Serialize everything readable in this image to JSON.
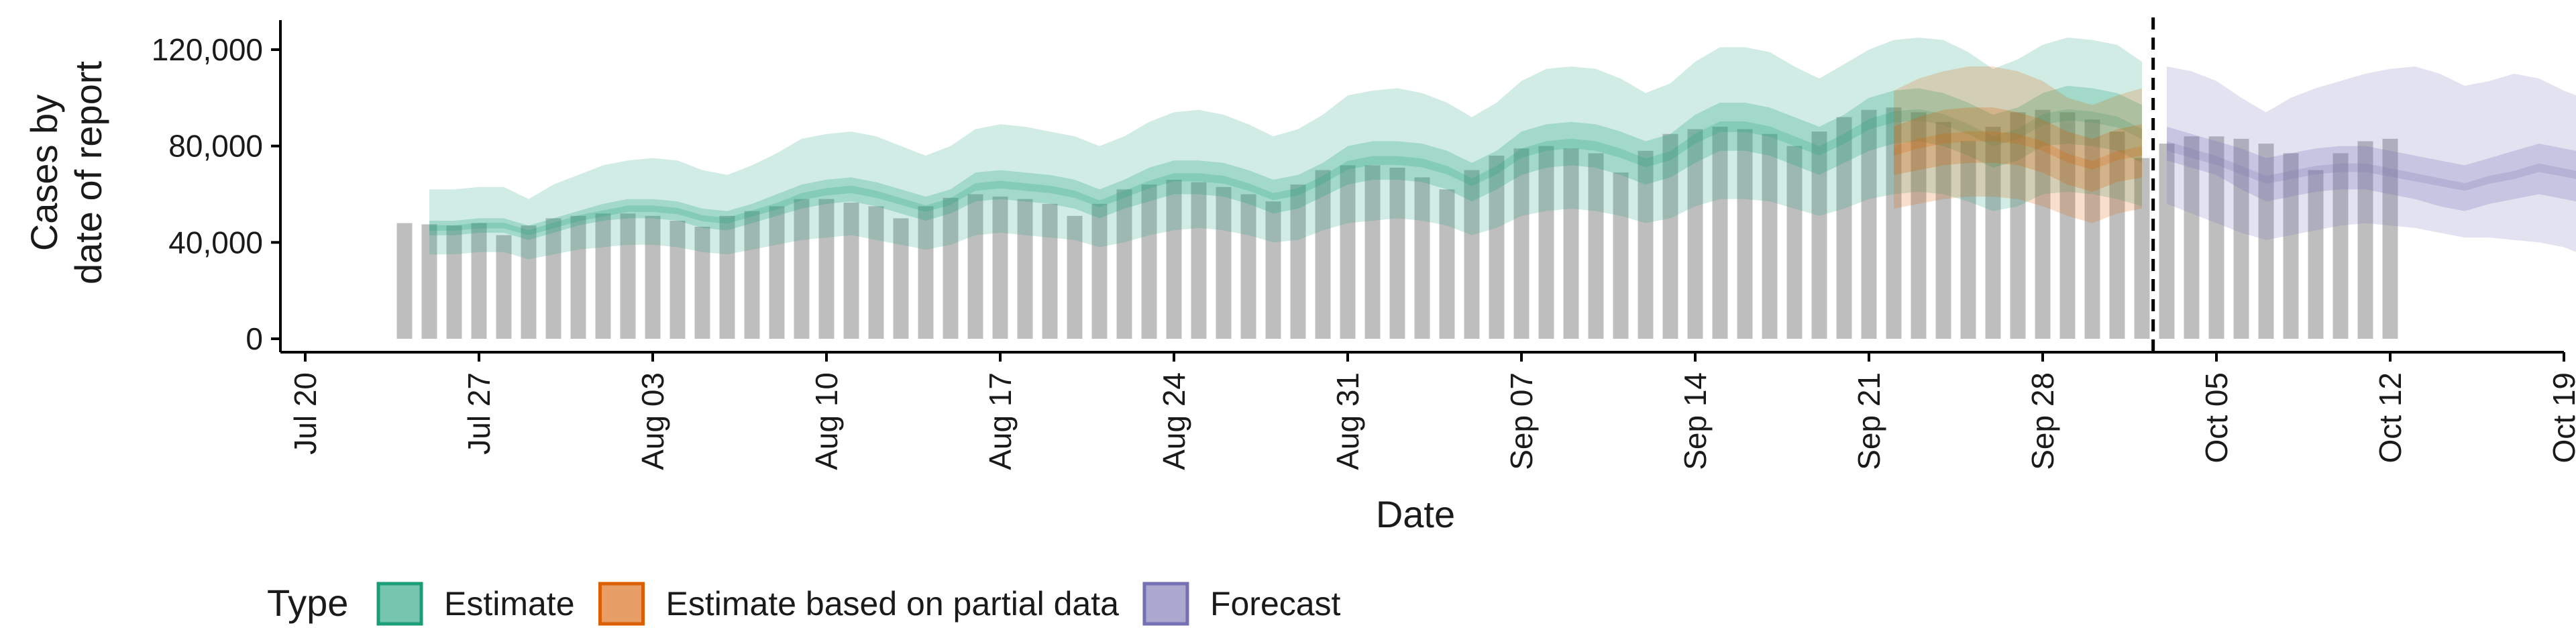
{
  "chart_data": {
    "type": "bar",
    "title": "",
    "xlabel": "Date",
    "ylabel_lines": [
      "Cases by",
      "date of report"
    ],
    "ylim": [
      0,
      130000
    ],
    "yticks": [
      0,
      40000,
      80000,
      120000
    ],
    "ytick_labels": [
      "0",
      "40,000",
      "80,000",
      "120,000"
    ],
    "xlim": [
      "2020-07-19",
      "2020-10-19"
    ],
    "xticks": [
      "2020-07-20",
      "2020-07-27",
      "2020-08-03",
      "2020-08-10",
      "2020-08-17",
      "2020-08-24",
      "2020-08-31",
      "2020-09-07",
      "2020-09-14",
      "2020-09-21",
      "2020-09-28",
      "2020-10-05",
      "2020-10-12",
      "2020-10-19"
    ],
    "xtick_labels": [
      "Jul 20",
      "Jul 27",
      "Aug 03",
      "Aug 10",
      "Aug 17",
      "Aug 24",
      "Aug 31",
      "Sep 07",
      "Sep 14",
      "Sep 21",
      "Sep 28",
      "Oct 05",
      "Oct 12",
      "Oct 19"
    ],
    "grid": false,
    "forecast_date": "2020-10-02",
    "reported_cases": {
      "start": "2020-07-24",
      "values": [
        48000,
        47500,
        47000,
        48000,
        43000,
        47000,
        50000,
        51000,
        52000,
        52000,
        51000,
        49000,
        46500,
        51000,
        53000,
        55000,
        58000,
        58000,
        56500,
        55000,
        50000,
        55000,
        58500,
        60000,
        59000,
        58000,
        56000,
        51000,
        56000,
        62000,
        64000,
        66000,
        65000,
        63000,
        60000,
        57000,
        64000,
        70000,
        72000,
        72000,
        71000,
        67000,
        62000,
        70000,
        76000,
        79000,
        80000,
        79000,
        77000,
        69000,
        78000,
        85000,
        87000,
        88000,
        87000,
        85000,
        80000,
        86000,
        92000,
        95000,
        96000,
        94000,
        90000,
        82000,
        88000,
        94000,
        95000,
        94000,
        91000,
        86000,
        75000,
        81000,
        84000,
        84000,
        83000,
        81000,
        77000,
        70000,
        77000,
        82000,
        83000
      ]
    },
    "series": [
      {
        "name": "Estimate",
        "color": "#1b9e77",
        "start": "2020-07-25",
        "median": [
          46000,
          46000,
          47000,
          47000,
          44000,
          47000,
          50000,
          52000,
          54000,
          54000,
          53000,
          50000,
          49000,
          52000,
          55000,
          59000,
          61000,
          62000,
          60000,
          57000,
          54000,
          57000,
          63000,
          64000,
          63000,
          62000,
          60000,
          56000,
          60000,
          64000,
          67000,
          67000,
          66000,
          63000,
          59000,
          61000,
          66000,
          72000,
          74000,
          74000,
          73000,
          70000,
          65000,
          70000,
          77000,
          80000,
          81000,
          80000,
          77000,
          73000,
          76000,
          83000,
          88000,
          88000,
          86000,
          82000,
          78000,
          83000,
          89000,
          92000,
          93000,
          91000,
          87000,
          82000,
          85000,
          91000,
          93000,
          92000,
          90000,
          85000
        ],
        "ci_50": [
          [
            43000,
            49000
          ],
          [
            43000,
            49000
          ],
          [
            44000,
            50000
          ],
          [
            44000,
            50000
          ],
          [
            41000,
            47000
          ],
          [
            44000,
            50000
          ],
          [
            47000,
            53000
          ],
          [
            49000,
            56000
          ],
          [
            50000,
            58000
          ],
          [
            50000,
            58000
          ],
          [
            49000,
            57000
          ],
          [
            46000,
            54000
          ],
          [
            45000,
            53000
          ],
          [
            48000,
            56000
          ],
          [
            51000,
            60000
          ],
          [
            54000,
            64000
          ],
          [
            56000,
            66000
          ],
          [
            57000,
            67000
          ],
          [
            55000,
            65000
          ],
          [
            52000,
            62000
          ],
          [
            49000,
            59000
          ],
          [
            52000,
            62000
          ],
          [
            57000,
            69000
          ],
          [
            58000,
            70000
          ],
          [
            57000,
            69000
          ],
          [
            56000,
            68000
          ],
          [
            54000,
            66000
          ],
          [
            50000,
            62000
          ],
          [
            54000,
            66000
          ],
          [
            57000,
            71000
          ],
          [
            60000,
            74000
          ],
          [
            60000,
            74000
          ],
          [
            59000,
            73000
          ],
          [
            56000,
            70000
          ],
          [
            52000,
            66000
          ],
          [
            54000,
            68000
          ],
          [
            59000,
            73000
          ],
          [
            64000,
            80000
          ],
          [
            66000,
            82000
          ],
          [
            66000,
            82000
          ],
          [
            65000,
            81000
          ],
          [
            62000,
            78000
          ],
          [
            57000,
            73000
          ],
          [
            62000,
            78000
          ],
          [
            68000,
            86000
          ],
          [
            71000,
            89000
          ],
          [
            72000,
            90000
          ],
          [
            71000,
            89000
          ],
          [
            68000,
            86000
          ],
          [
            64000,
            82000
          ],
          [
            67000,
            85000
          ],
          [
            73000,
            93000
          ],
          [
            78000,
            98000
          ],
          [
            78000,
            98000
          ],
          [
            76000,
            96000
          ],
          [
            72000,
            92000
          ],
          [
            68000,
            88000
          ],
          [
            73000,
            93000
          ],
          [
            78000,
            100000
          ],
          [
            81000,
            103000
          ],
          [
            82000,
            104000
          ],
          [
            80000,
            102000
          ],
          [
            76000,
            98000
          ],
          [
            71000,
            93000
          ],
          [
            74000,
            96000
          ],
          [
            80000,
            102000
          ],
          [
            81000,
            105000
          ],
          [
            80000,
            104000
          ],
          [
            78000,
            102000
          ],
          [
            73000,
            97000
          ]
        ],
        "ci_90": [
          [
            35000,
            62000
          ],
          [
            35000,
            62000
          ],
          [
            36000,
            63000
          ],
          [
            36000,
            63000
          ],
          [
            33000,
            58000
          ],
          [
            35000,
            64000
          ],
          [
            37000,
            68000
          ],
          [
            38000,
            72000
          ],
          [
            39000,
            74000
          ],
          [
            39000,
            75000
          ],
          [
            38000,
            74000
          ],
          [
            36000,
            70000
          ],
          [
            35000,
            68000
          ],
          [
            37000,
            72000
          ],
          [
            39000,
            77000
          ],
          [
            41000,
            83000
          ],
          [
            42000,
            85000
          ],
          [
            43000,
            86000
          ],
          [
            41000,
            84000
          ],
          [
            39000,
            80000
          ],
          [
            37000,
            76000
          ],
          [
            39000,
            80000
          ],
          [
            43000,
            87000
          ],
          [
            44000,
            89000
          ],
          [
            43000,
            88000
          ],
          [
            42000,
            86000
          ],
          [
            41000,
            84000
          ],
          [
            38000,
            80000
          ],
          [
            40000,
            84000
          ],
          [
            43000,
            90000
          ],
          [
            45000,
            94000
          ],
          [
            46000,
            95000
          ],
          [
            45000,
            93000
          ],
          [
            43000,
            89000
          ],
          [
            40000,
            84000
          ],
          [
            41000,
            87000
          ],
          [
            45000,
            93000
          ],
          [
            48000,
            101000
          ],
          [
            49000,
            103000
          ],
          [
            50000,
            104000
          ],
          [
            49000,
            102000
          ],
          [
            47000,
            98000
          ],
          [
            43000,
            92000
          ],
          [
            46000,
            98000
          ],
          [
            51000,
            107000
          ],
          [
            53000,
            112000
          ],
          [
            54000,
            113000
          ],
          [
            53000,
            112000
          ],
          [
            51000,
            108000
          ],
          [
            48000,
            102000
          ],
          [
            50000,
            106000
          ],
          [
            55000,
            115000
          ],
          [
            58000,
            121000
          ],
          [
            58000,
            121000
          ],
          [
            57000,
            119000
          ],
          [
            54000,
            113000
          ],
          [
            51000,
            108000
          ],
          [
            54000,
            114000
          ],
          [
            58000,
            120000
          ],
          [
            60000,
            124000
          ],
          [
            61000,
            125000
          ],
          [
            60000,
            124000
          ],
          [
            57000,
            119000
          ],
          [
            53000,
            112000
          ],
          [
            55000,
            116000
          ],
          [
            60000,
            122000
          ],
          [
            61000,
            125000
          ],
          [
            60000,
            124000
          ],
          [
            58000,
            122000
          ],
          [
            55000,
            115000
          ]
        ]
      },
      {
        "name": "Estimate based on partial data",
        "color": "#d95f02",
        "start": "2020-09-22",
        "median": [
          78000,
          81000,
          83000,
          84000,
          84000,
          83000,
          80000,
          75000,
          72000,
          76000,
          78000
        ],
        "ci_50": [
          [
            68000,
            88000
          ],
          [
            70000,
            92000
          ],
          [
            72000,
            95000
          ],
          [
            73000,
            96000
          ],
          [
            73000,
            96000
          ],
          [
            72000,
            94000
          ],
          [
            69000,
            91000
          ],
          [
            64000,
            86000
          ],
          [
            61000,
            83000
          ],
          [
            65000,
            87000
          ],
          [
            67000,
            89000
          ]
        ],
        "ci_90": [
          [
            54000,
            103000
          ],
          [
            56000,
            108000
          ],
          [
            58000,
            111000
          ],
          [
            59000,
            113000
          ],
          [
            59000,
            113000
          ],
          [
            58000,
            111000
          ],
          [
            55000,
            107000
          ],
          [
            51000,
            100000
          ],
          [
            48000,
            97000
          ],
          [
            52000,
            101000
          ],
          [
            54000,
            104000
          ]
        ]
      },
      {
        "name": "Forecast",
        "color": "#7570b3",
        "start": "2020-10-03",
        "median": [
          80000,
          77000,
          74000,
          70000,
          66000,
          68000,
          70000,
          71000,
          71000,
          69000,
          67000,
          65000,
          63000,
          66000,
          68000,
          71000,
          69000,
          67000,
          64000,
          62000,
          60000,
          63000,
          66000,
          67000,
          66000
        ],
        "ci_50": [
          [
            74000,
            88000
          ],
          [
            71000,
            85000
          ],
          [
            68000,
            82000
          ],
          [
            62000,
            79000
          ],
          [
            57000,
            75000
          ],
          [
            59000,
            77000
          ],
          [
            61000,
            79000
          ],
          [
            62000,
            80000
          ],
          [
            62000,
            80000
          ],
          [
            60000,
            78000
          ],
          [
            58000,
            76000
          ],
          [
            55000,
            74000
          ],
          [
            53000,
            72000
          ],
          [
            56000,
            75000
          ],
          [
            58000,
            78000
          ],
          [
            60000,
            81000
          ],
          [
            58000,
            79000
          ],
          [
            56000,
            77000
          ],
          [
            53000,
            74000
          ],
          [
            51000,
            72000
          ],
          [
            49000,
            70000
          ],
          [
            52000,
            73000
          ],
          [
            55000,
            77000
          ],
          [
            56000,
            79000
          ],
          [
            55000,
            78000
          ]
        ],
        "ci_90": [
          [
            56000,
            113000
          ],
          [
            52000,
            111000
          ],
          [
            48000,
            107000
          ],
          [
            44000,
            100000
          ],
          [
            41000,
            94000
          ],
          [
            43000,
            100000
          ],
          [
            45000,
            104000
          ],
          [
            47000,
            107000
          ],
          [
            48000,
            110000
          ],
          [
            47000,
            112000
          ],
          [
            46000,
            113000
          ],
          [
            44000,
            110000
          ],
          [
            42000,
            105000
          ],
          [
            42000,
            107000
          ],
          [
            41000,
            110000
          ],
          [
            40000,
            108000
          ],
          [
            38000,
            103000
          ],
          [
            34000,
            99000
          ],
          [
            31000,
            96000
          ],
          [
            32000,
            99000
          ],
          [
            33000,
            103000
          ],
          [
            34000,
            110000
          ],
          [
            35000,
            118000
          ],
          [
            35000,
            121000
          ],
          [
            34000,
            124000
          ]
        ]
      }
    ],
    "legend": {
      "title": "Type",
      "placement": "bottom-left",
      "items": [
        "Estimate",
        "Estimate based on partial data",
        "Forecast"
      ]
    }
  }
}
